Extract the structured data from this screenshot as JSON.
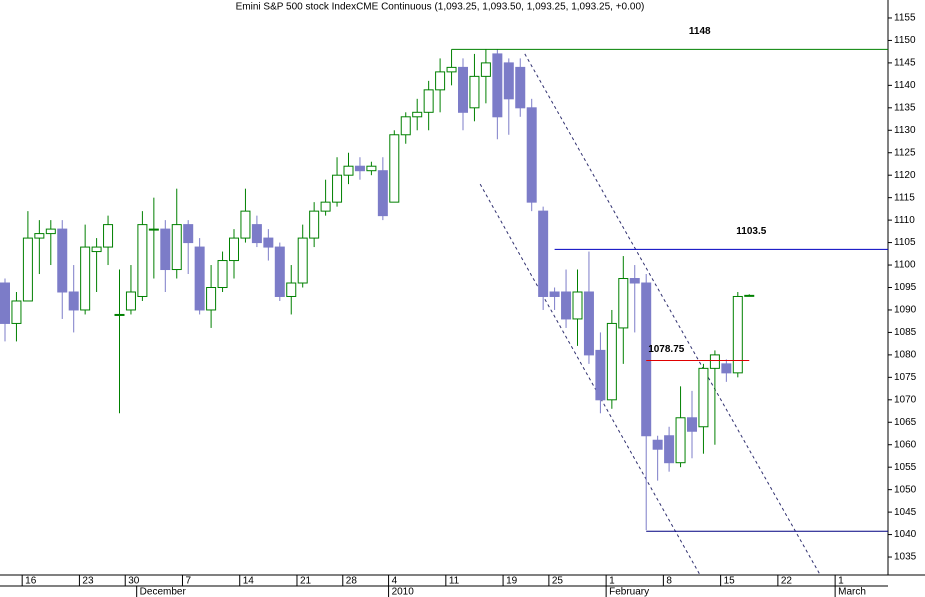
{
  "chart_data": {
    "type": "candlestick",
    "title": "Emini S&P 500 stock IndexCME Continuous (1,093.25, 1,093.50, 1,093.25, 1,093.25, +0.00)",
    "categories": [
      null,
      null,
      "16",
      null,
      null,
      null,
      null,
      "23",
      null,
      null,
      null,
      "30",
      null,
      null,
      null,
      null,
      "7",
      null,
      null,
      null,
      null,
      "14",
      null,
      null,
      null,
      null,
      "21",
      null,
      null,
      null,
      "28",
      null,
      null,
      null,
      "4",
      null,
      null,
      null,
      null,
      "11",
      null,
      null,
      null,
      null,
      "19",
      null,
      null,
      null,
      "25",
      null,
      null,
      null,
      null,
      "1",
      null,
      null,
      null,
      null,
      "8",
      null,
      null,
      null,
      null,
      "15",
      null,
      null,
      null,
      null,
      "22",
      null,
      null,
      null,
      null,
      "1",
      null
    ],
    "month_categories": [
      null,
      null,
      null,
      null,
      null,
      null,
      null,
      null,
      null,
      null,
      null,
      null,
      "December",
      null,
      null,
      null,
      null,
      null,
      null,
      null,
      null,
      null,
      null,
      null,
      null,
      null,
      null,
      null,
      null,
      null,
      null,
      null,
      null,
      null,
      "2010",
      null,
      null,
      null,
      null,
      null,
      null,
      null,
      null,
      null,
      null,
      null,
      null,
      null,
      null,
      null,
      null,
      null,
      null,
      "February",
      null,
      null,
      null,
      null,
      null,
      null,
      null,
      null,
      null,
      null,
      null,
      null,
      null,
      null,
      null,
      null,
      null,
      null,
      null,
      "March",
      null
    ],
    "open": [
      1096,
      1087,
      1092,
      1106,
      1107,
      1108,
      1094,
      1090,
      1103,
      1104,
      1089,
      1090,
      1093,
      1108,
      1108,
      1099,
      1109,
      1104,
      1090,
      1095,
      1101,
      1106,
      1109,
      1106,
      1104,
      1093,
      1096,
      1106,
      1112,
      1114,
      1120,
      1122,
      1121,
      1121,
      1114,
      1129,
      1133,
      1134,
      1139,
      1143,
      1144,
      1135,
      1142,
      1147,
      1145,
      1144,
      1135,
      1112,
      1094,
      1094,
      1088,
      1094,
      1081,
      1070,
      1086,
      1097,
      1096,
      1061,
      1062,
      1056,
      1066,
      1064,
      1077,
      1078,
      1076,
      1093.25,
      null,
      null,
      null,
      null,
      null,
      null,
      null,
      null,
      null
    ],
    "high": [
      1097,
      1094,
      1112,
      1110,
      1110,
      1110,
      1100,
      1109,
      1106,
      1111,
      1099,
      1100,
      1112,
      1115,
      1110,
      1117,
      1110,
      1106,
      1100,
      1103,
      1108,
      1117,
      1111,
      1108,
      1105,
      1100,
      1109,
      1114,
      1119,
      1124,
      1125,
      1124,
      1123,
      1124,
      1130,
      1134,
      1137,
      1141,
      1146,
      1148,
      1146,
      1147,
      1148,
      1148,
      1146,
      1146,
      1137,
      1113,
      1095,
      1099,
      1099,
      1103,
      1085,
      1090,
      1102,
      1100,
      1098,
      1062,
      1064,
      1073,
      1072,
      1078,
      1081,
      1079,
      1094,
      1093.5,
      null,
      null,
      null,
      null,
      null,
      null,
      null,
      null,
      null
    ],
    "low": [
      1083,
      1083,
      1092,
      1098,
      1100,
      1088,
      1085,
      1089,
      1094,
      1100,
      1067,
      1089,
      1092,
      1097,
      1094,
      1097,
      1098,
      1089,
      1086,
      1094,
      1097,
      1105,
      1104,
      1101,
      1092,
      1089,
      1095,
      1104,
      1111,
      1113,
      1118,
      1119,
      1120,
      1110,
      1114,
      1127,
      1130,
      1130,
      1134,
      1140,
      1130,
      1132,
      1136,
      1128,
      1129,
      1133,
      1112,
      1090,
      1090,
      1086,
      1082,
      1078,
      1067,
      1068,
      1078,
      1085,
      1041,
      1052,
      1054,
      1055,
      1057,
      1058,
      1060,
      1074,
      1075,
      1093.25,
      null,
      null,
      null,
      null,
      null,
      null,
      null,
      null,
      null
    ],
    "close": [
      1087,
      1092,
      1106,
      1107,
      1108,
      1094,
      1090,
      1104,
      1104,
      1109,
      1089,
      1094,
      1109,
      1108,
      1099,
      1109,
      1105,
      1090,
      1095,
      1101,
      1106,
      1112,
      1105,
      1104,
      1093,
      1096,
      1106,
      1112,
      1114,
      1120,
      1122,
      1121,
      1122,
      1111,
      1129,
      1133,
      1134,
      1139,
      1143,
      1144,
      1134,
      1142,
      1145,
      1133,
      1137,
      1135,
      1114,
      1093,
      1093,
      1088,
      1094,
      1080,
      1070,
      1087,
      1097,
      1096,
      1062,
      1059,
      1056,
      1066,
      1063,
      1077,
      1080,
      1076,
      1093,
      1093.25,
      null,
      null,
      null,
      null,
      null,
      null,
      null,
      null,
      null
    ],
    "up_color": "#008000",
    "down_color": "#7c7cc8",
    "ylim": [
      1031,
      1159
    ],
    "yticks": [
      1035,
      1040,
      1045,
      1050,
      1055,
      1060,
      1065,
      1070,
      1075,
      1080,
      1085,
      1090,
      1095,
      1100,
      1105,
      1110,
      1115,
      1120,
      1125,
      1130,
      1135,
      1140,
      1145,
      1150,
      1155
    ],
    "levels": [
      {
        "label": "1148",
        "value": 1148,
        "start": 39,
        "color": "#008000"
      },
      {
        "label": "1103.5",
        "value": 1103.5,
        "start": 48,
        "color": "#0000c0"
      },
      {
        "label": "1078.75",
        "value": 1078.75,
        "start": 56,
        "end": 65,
        "color": "#e00000"
      },
      {
        "value": 1040.75,
        "start": 56,
        "color": "#000080"
      }
    ],
    "trendlines": [
      {
        "points": [
          [
            45.4,
            1147
          ],
          [
            71.2,
            1031
          ]
        ]
      },
      {
        "points": [
          [
            41.5,
            1118
          ],
          [
            60.7,
            1031
          ]
        ]
      }
    ]
  }
}
